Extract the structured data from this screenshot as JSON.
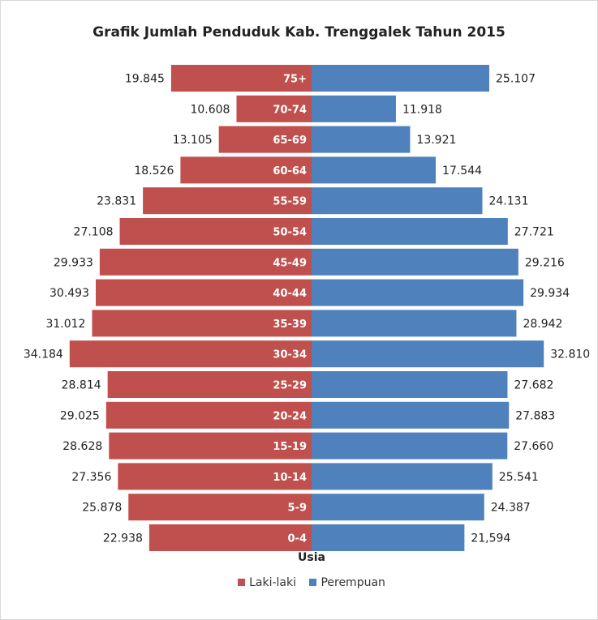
{
  "chart_data": {
    "type": "bar",
    "orientation": "horizontal",
    "layout": "population-pyramid",
    "title": "Grafik Jumlah Penduduk Kab. Trenggalek Tahun 2015",
    "xlabel": "Usia",
    "legend_position": "bottom",
    "categories": [
      "75+",
      "70-74",
      "65-69",
      "60-64",
      "55-59",
      "50-54",
      "45-49",
      "40-44",
      "35-39",
      "30-34",
      "25-29",
      "20-24",
      "15-19",
      "10-14",
      "5-9",
      "0-4"
    ],
    "series": [
      {
        "name": "Laki-laki",
        "side": "left",
        "color": "#C0504D",
        "values": [
          19845,
          10608,
          13105,
          18526,
          23831,
          27108,
          29933,
          30493,
          31012,
          34184,
          28814,
          29025,
          28628,
          27356,
          25878,
          22938
        ],
        "labels": [
          "19.845",
          "10.608",
          "13.105",
          "18.526",
          "23.831",
          "27.108",
          "29.933",
          "30.493",
          "31.012",
          "34.184",
          "28.814",
          "29.025",
          "28.628",
          "27.356",
          "25.878",
          "22.938"
        ]
      },
      {
        "name": "Perempuan",
        "side": "right",
        "color": "#4F81BD",
        "values": [
          25107,
          11918,
          13921,
          17544,
          24131,
          27721,
          29216,
          29934,
          28942,
          32810,
          27682,
          27883,
          27660,
          25541,
          24387,
          21594
        ],
        "labels": [
          "25.107",
          "11.918",
          "13.921",
          "17.544",
          "24.131",
          "27.721",
          "29.216",
          "29.934",
          "28.942",
          "32.810",
          "27.682",
          "27.883",
          "27.660",
          "25.541",
          "24.387",
          "21,594"
        ]
      }
    ]
  }
}
